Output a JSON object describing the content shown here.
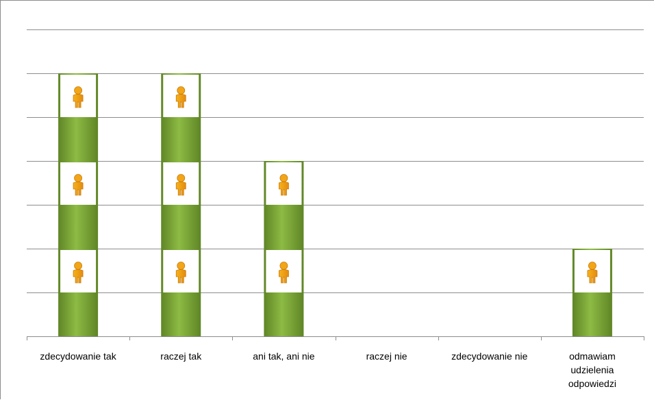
{
  "chart_data": {
    "type": "bar",
    "categories": [
      "zdecydowanie tak",
      "raczej tak",
      "ani tak, ani nie",
      "raczej nie",
      "zdecydowanie nie",
      "odmawiam udzielenia odpowiedzi"
    ],
    "category_label_lines": [
      [
        "zdecydowanie tak"
      ],
      [
        "raczej tak"
      ],
      [
        "ani tak, ani nie"
      ],
      [
        "raczej nie"
      ],
      [
        "zdecydowanie nie"
      ],
      [
        "odmawiam",
        "udzielenia",
        "odpowiedzi"
      ]
    ],
    "values": [
      3,
      3,
      2,
      0,
      0,
      1
    ],
    "ylim": [
      0,
      3.5
    ],
    "grid": true,
    "legend": "none",
    "title": "",
    "xlabel": "",
    "ylabel": "",
    "bar_color": "#7fa83a",
    "marker": "person-icon"
  }
}
